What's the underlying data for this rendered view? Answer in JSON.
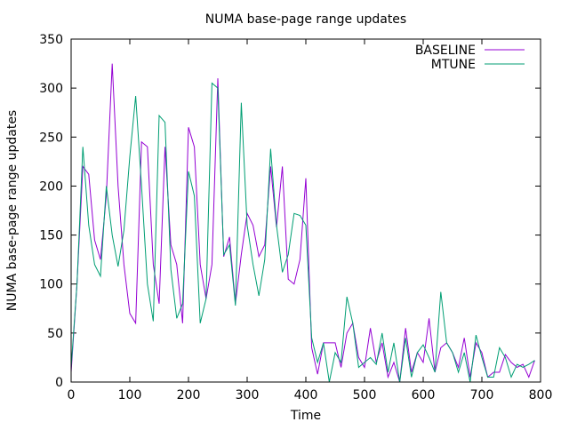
{
  "chart_data": {
    "type": "line",
    "title": "NUMA base-page range updates",
    "xlabel": "Time",
    "ylabel": "NUMA base-page range updates",
    "xlim": [
      0,
      800
    ],
    "ylim": [
      0,
      350
    ],
    "xticks": [
      0,
      100,
      200,
      300,
      400,
      500,
      600,
      700,
      800
    ],
    "yticks": [
      0,
      50,
      100,
      150,
      200,
      250,
      300,
      350
    ],
    "grid": false,
    "legend": "top-right",
    "x_step": 10,
    "series": [
      {
        "name": "BASELINE",
        "color": "#9400d3",
        "values": [
          10,
          100,
          220,
          212,
          145,
          125,
          190,
          325,
          200,
          120,
          70,
          60,
          245,
          240,
          120,
          80,
          240,
          140,
          120,
          60,
          260,
          240,
          120,
          85,
          120,
          310,
          128,
          148,
          80,
          130,
          172,
          160,
          128,
          140,
          220,
          158,
          220,
          105,
          100,
          125,
          208,
          35,
          8,
          40,
          40,
          40,
          15,
          50,
          60,
          25,
          15,
          55,
          20,
          40,
          5,
          20,
          0,
          55,
          10,
          30,
          20,
          65,
          10,
          35,
          40,
          30,
          15,
          45,
          5,
          40,
          30,
          5,
          10,
          10,
          28,
          20,
          15,
          18,
          5,
          22
        ]
      },
      {
        "name": "MTUNE",
        "color": "#009e73",
        "values": [
          15,
          100,
          240,
          160,
          120,
          108,
          200,
          150,
          118,
          155,
          230,
          292,
          200,
          100,
          62,
          272,
          265,
          115,
          65,
          80,
          215,
          190,
          60,
          85,
          305,
          300,
          130,
          140,
          78,
          285,
          160,
          120,
          88,
          125,
          238,
          160,
          112,
          130,
          172,
          170,
          160,
          45,
          20,
          40,
          0,
          30,
          20,
          87,
          60,
          15,
          20,
          25,
          18,
          50,
          10,
          40,
          0,
          45,
          5,
          30,
          38,
          25,
          10,
          92,
          40,
          30,
          10,
          30,
          0,
          48,
          25,
          5,
          5,
          35,
          25,
          5,
          18,
          15,
          18,
          22
        ]
      }
    ]
  }
}
